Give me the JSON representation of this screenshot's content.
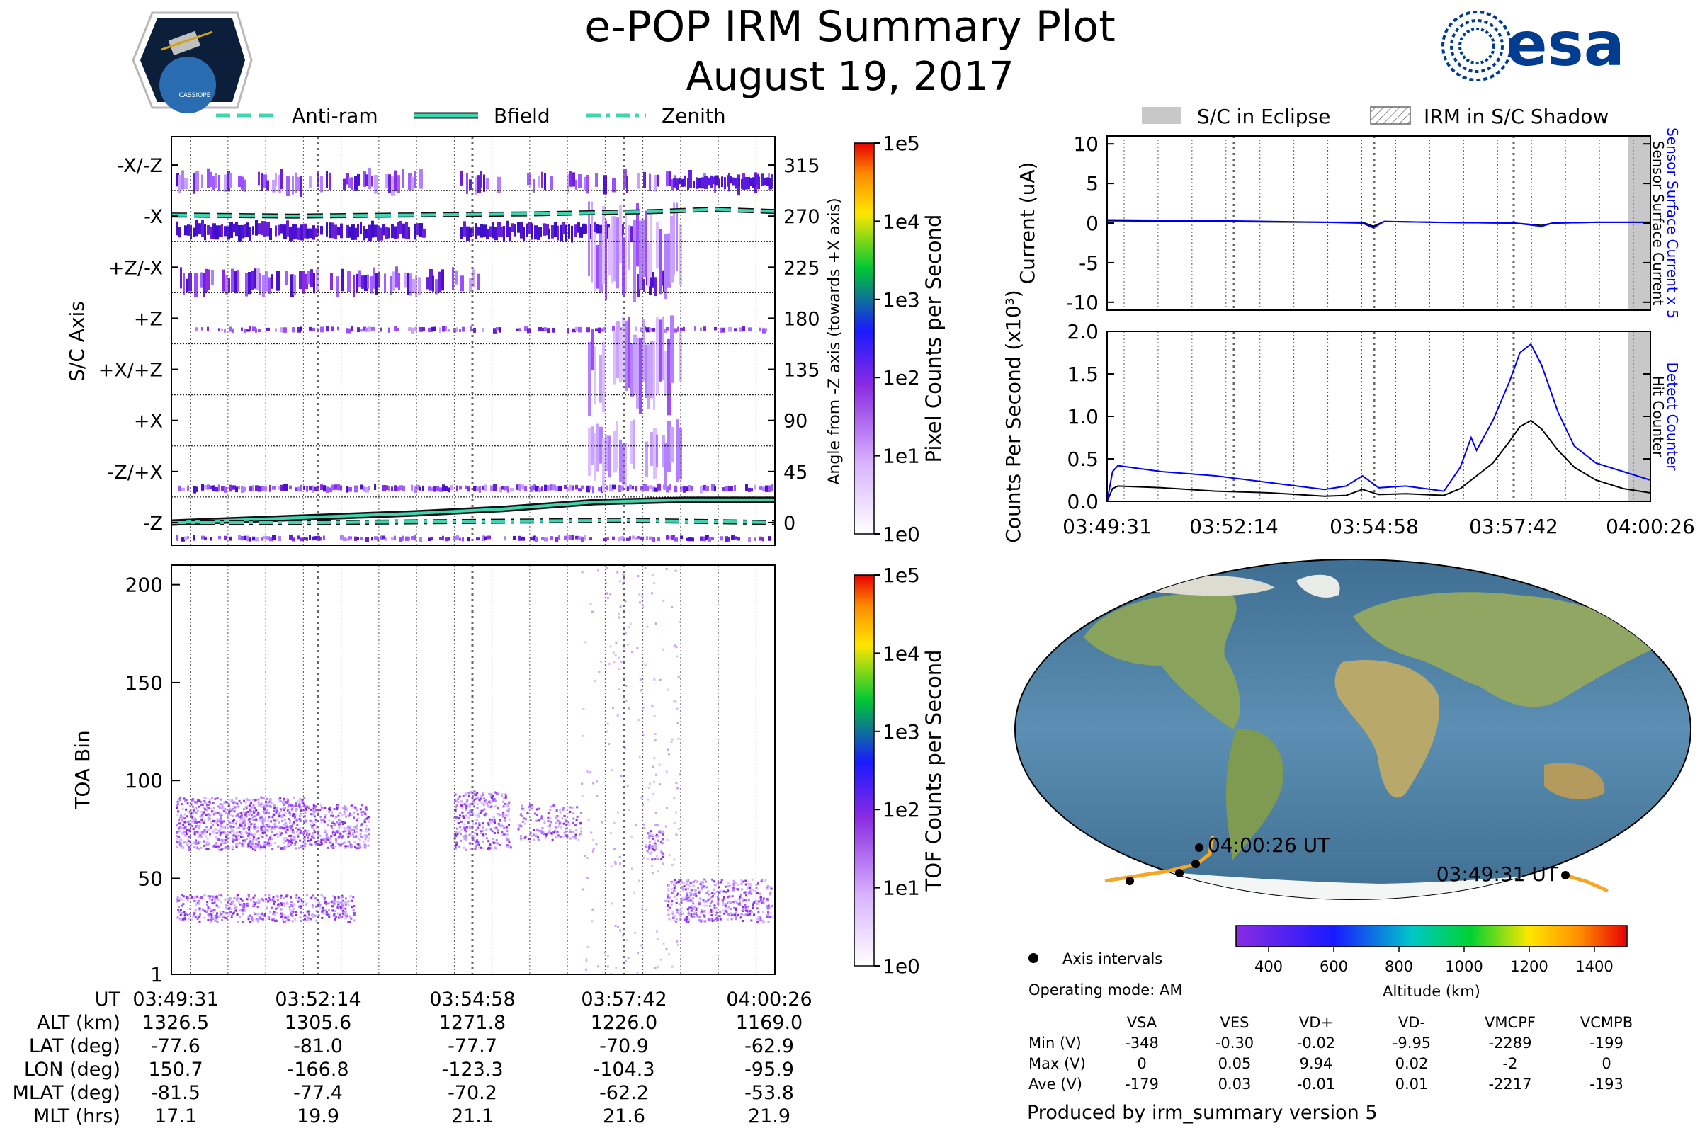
{
  "header": {
    "title": "e-POP IRM Summary Plot",
    "date": "August 19, 2017",
    "mission_logo_text": "CASSIOPE",
    "agency_logo_text": "esa"
  },
  "colors": {
    "antiram": "#3dd6b0",
    "bfield": "#3dd6b0",
    "zenith": "#3dd6b0",
    "hit_counter": "#000000",
    "detect_counter": "#0000ff",
    "sensor_current": "#000000",
    "sensor_current_x5": "#0000ff",
    "ground_track": "#f5a623",
    "eclipse": "#c8c8c8"
  },
  "chart_data": [
    {
      "id": "pixel_counts",
      "type": "heatmap",
      "ylabel": "S/C Axis",
      "y_tick_labels": [
        "-X/-Z",
        "-X",
        "+Z/-X",
        "+Z",
        "+X/+Z",
        "+X",
        "-Z/+X",
        "-Z"
      ],
      "y2label": "Angle from -Z axis (towards +X axis)",
      "y2_ticks": [
        315,
        270,
        225,
        180,
        135,
        90,
        45,
        0
      ],
      "ylim": [
        -20,
        340
      ],
      "legend": [
        "Anti-ram",
        "Bfield",
        "Zenith"
      ],
      "series": [
        {
          "name": "Anti-ram",
          "style": "dashed",
          "x": [
            0,
            0.2,
            0.4,
            0.6,
            0.8,
            0.9,
            1.0
          ],
          "values": [
            271,
            270,
            271,
            272,
            274,
            276,
            274
          ]
        },
        {
          "name": "Bfield",
          "style": "solid",
          "x": [
            0,
            0.2,
            0.4,
            0.55,
            0.7,
            0.85,
            1.0
          ],
          "values": [
            0,
            4,
            8,
            12,
            18,
            20,
            20
          ]
        },
        {
          "name": "Zenith",
          "style": "dashdot",
          "x": [
            0,
            0.25,
            0.5,
            0.75,
            1.0
          ],
          "values": [
            0,
            0,
            1,
            2,
            0
          ]
        }
      ],
      "colorbar": {
        "label": "Pixel Counts per Second",
        "ticks": [
          "1e5",
          "1e4",
          "1e3",
          "1e2",
          "1e1",
          "1e0"
        ]
      }
    },
    {
      "id": "tof_counts",
      "type": "heatmap",
      "ylabel": "TOA Bin",
      "y_ticks": [
        200,
        150,
        100,
        50,
        1
      ],
      "ylim": [
        1,
        210
      ],
      "colorbar": {
        "label": "TOF Counts per Second",
        "ticks": [
          "1e5",
          "1e4",
          "1e3",
          "1e2",
          "1e1",
          "1e0"
        ]
      }
    },
    {
      "id": "sensor_current",
      "type": "line",
      "ylabel": "Current (uA)",
      "y_ticks": [
        10,
        5,
        0,
        -5,
        -10
      ],
      "ylim": [
        -11,
        11
      ],
      "right_labels": [
        "Sensor Surface Current x 5",
        "Sensor Surface Current"
      ],
      "series": [
        {
          "name": "Sensor Surface Current",
          "x": [
            0,
            0.2,
            0.4,
            0.47,
            0.49,
            0.51,
            0.6,
            0.75,
            0.8,
            0.82,
            0.9,
            1.0
          ],
          "values": [
            0.3,
            0.2,
            0.1,
            0.1,
            -0.4,
            0.2,
            0.1,
            0.0,
            -0.3,
            0.0,
            0.1,
            0.1
          ]
        },
        {
          "name": "Sensor Surface Current x 5",
          "x": [
            0,
            0.2,
            0.4,
            0.47,
            0.49,
            0.51,
            0.6,
            0.75,
            0.8,
            0.82,
            0.9,
            1.0
          ],
          "values": [
            0.4,
            0.3,
            0.1,
            0.0,
            -0.6,
            0.2,
            0.1,
            0.0,
            -0.4,
            0.0,
            0.1,
            0.1
          ]
        }
      ]
    },
    {
      "id": "counts",
      "type": "line",
      "ylabel": "Counts Per Second (x10³)",
      "y_ticks": [
        "2.0",
        "1.5",
        "1.0",
        "0.5",
        "0.0"
      ],
      "ylim": [
        0,
        2.0
      ],
      "right_labels": [
        "Detect Counter",
        "Hit Counter"
      ],
      "x_tick_labels": [
        "03:49:31",
        "03:52:14",
        "03:54:58",
        "03:57:42",
        "04:00:26"
      ],
      "series": [
        {
          "name": "Hit Counter",
          "x": [
            0,
            0.01,
            0.02,
            0.1,
            0.2,
            0.3,
            0.4,
            0.44,
            0.47,
            0.5,
            0.55,
            0.62,
            0.65,
            0.68,
            0.71,
            0.74,
            0.76,
            0.78,
            0.8,
            0.83,
            0.86,
            0.9,
            0.95,
            1.0
          ],
          "values": [
            0,
            0.15,
            0.18,
            0.16,
            0.12,
            0.1,
            0.06,
            0.07,
            0.14,
            0.08,
            0.09,
            0.07,
            0.15,
            0.3,
            0.45,
            0.7,
            0.88,
            0.95,
            0.85,
            0.6,
            0.4,
            0.25,
            0.15,
            0.1
          ]
        },
        {
          "name": "Detect Counter",
          "x": [
            0,
            0.01,
            0.02,
            0.1,
            0.2,
            0.3,
            0.4,
            0.44,
            0.47,
            0.5,
            0.55,
            0.62,
            0.65,
            0.67,
            0.68,
            0.71,
            0.74,
            0.76,
            0.78,
            0.8,
            0.83,
            0.86,
            0.9,
            0.95,
            1.0
          ],
          "values": [
            0,
            0.35,
            0.42,
            0.35,
            0.3,
            0.22,
            0.14,
            0.18,
            0.3,
            0.16,
            0.18,
            0.12,
            0.4,
            0.75,
            0.6,
            0.95,
            1.4,
            1.75,
            1.85,
            1.6,
            1.05,
            0.65,
            0.45,
            0.35,
            0.25
          ]
        }
      ]
    }
  ],
  "time_axis": [
    "03:49:31",
    "03:52:14",
    "03:54:58",
    "03:57:42",
    "04:00:26"
  ],
  "eclipse_legend": {
    "eclipse": "S/C in Eclipse",
    "shadow": "IRM in S/C Shadow"
  },
  "ephemeris": {
    "rows": [
      {
        "label": "UT",
        "values": [
          "03:49:31",
          "03:52:14",
          "03:54:58",
          "03:57:42",
          "04:00:26"
        ]
      },
      {
        "label": "ALT (km)",
        "values": [
          "1326.5",
          "1305.6",
          "1271.8",
          "1226.0",
          "1169.0"
        ]
      },
      {
        "label": "LAT (deg)",
        "values": [
          "-77.6",
          "-81.0",
          "-77.7",
          "-70.9",
          "-62.9"
        ]
      },
      {
        "label": "LON (deg)",
        "values": [
          "150.7",
          "-166.8",
          "-123.3",
          "-104.3",
          "-95.9"
        ]
      },
      {
        "label": "MLAT (deg)",
        "values": [
          "-81.5",
          "-77.4",
          "-70.2",
          "-62.2",
          "-53.8"
        ]
      },
      {
        "label": "MLT (hrs)",
        "values": [
          "17.1",
          "19.9",
          "21.1",
          "21.6",
          "21.9"
        ]
      }
    ]
  },
  "map": {
    "end_label": "04:00:26 UT",
    "start_label": "03:49:31 UT",
    "legend_axis_intervals": "Axis intervals",
    "operating_mode": "Operating mode: AM",
    "altitude_label": "Altitude (km)",
    "altitude_ticks": [
      "400",
      "600",
      "800",
      "1000",
      "1200",
      "1400"
    ],
    "altitude_range": [
      300,
      1500
    ]
  },
  "voltages": {
    "headers": [
      "VSA",
      "VES",
      "VD+",
      "VD-",
      "VMCPF",
      "VCMPB"
    ],
    "rows": [
      {
        "label": "Min (V)",
        "values": [
          "-348",
          "-0.30",
          "-0.02",
          "-9.95",
          "-2289",
          "-199"
        ]
      },
      {
        "label": "Max (V)",
        "values": [
          "0",
          "0.05",
          "9.94",
          "0.02",
          "-2",
          "0"
        ]
      },
      {
        "label": "Ave (V)",
        "values": [
          "-179",
          "0.03",
          "-0.01",
          "0.01",
          "-2217",
          "-193"
        ]
      }
    ]
  },
  "footer": "Produced by irm_summary version 5"
}
